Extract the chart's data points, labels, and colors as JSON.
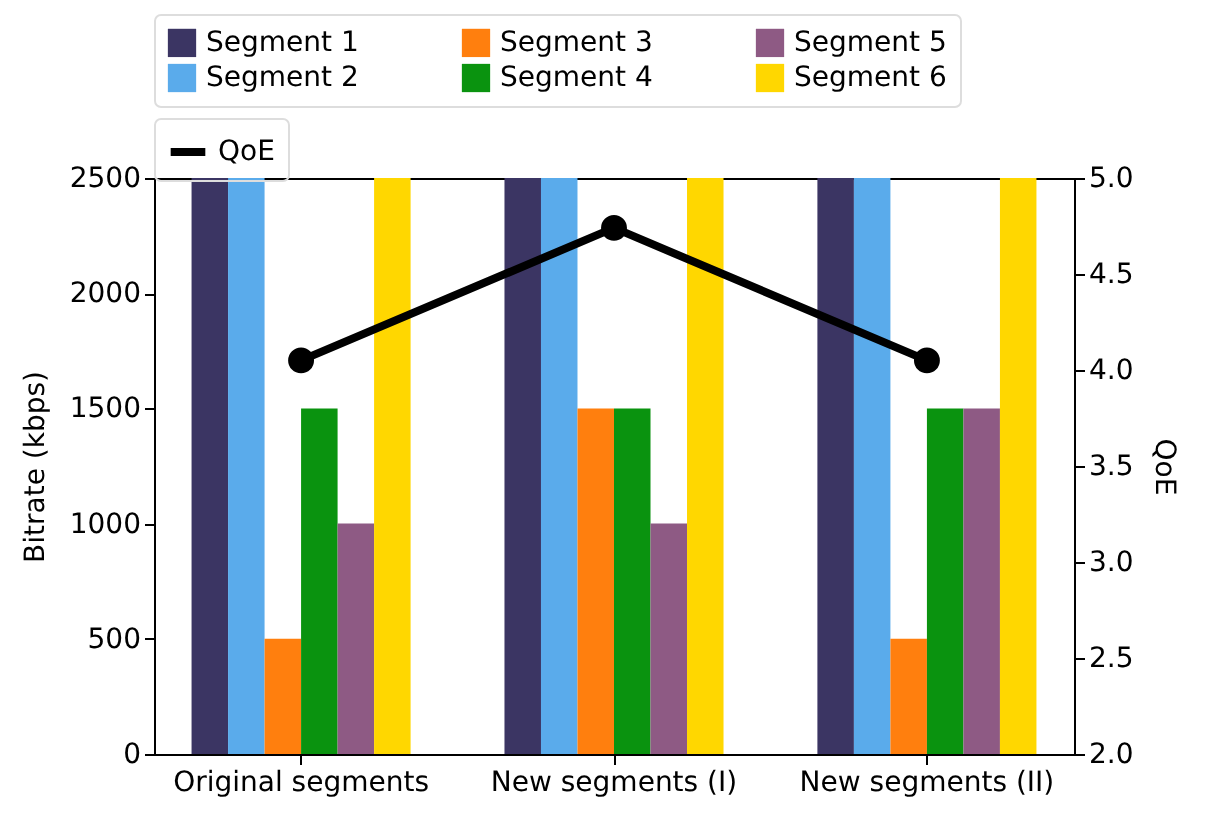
{
  "chart_data": {
    "type": "bar",
    "categories": [
      "Original segments",
      "New segments (I)",
      "New segments (II)"
    ],
    "series": [
      {
        "name": "Segment 1",
        "color": "#3b3563",
        "values": [
          2500,
          2500,
          2500
        ]
      },
      {
        "name": "Segment 2",
        "color": "#5aabeb",
        "values": [
          2500,
          2500,
          2500
        ]
      },
      {
        "name": "Segment 3",
        "color": "#ff7f0e",
        "values": [
          500,
          1500,
          500
        ]
      },
      {
        "name": "Segment 4",
        "color": "#0a930f",
        "values": [
          1500,
          1500,
          1500
        ]
      },
      {
        "name": "Segment 5",
        "color": "#8e5a84",
        "values": [
          1000,
          1000,
          1500
        ]
      },
      {
        "name": "Segment 6",
        "color": "#ffd700",
        "values": [
          2500,
          2500,
          2500
        ]
      },
      {
        "name": "QoE",
        "color": "#000000",
        "type": "line",
        "axis": "y2",
        "values": [
          4.05,
          4.74,
          4.05
        ]
      }
    ],
    "ylabel": "Bitrate (kbps)",
    "y2label": "QoE",
    "ylim": [
      0,
      2500
    ],
    "yticks": [
      0,
      500,
      1000,
      1500,
      2000,
      2500
    ],
    "y2lim": [
      2.0,
      5.0
    ],
    "y2ticks": [
      {
        "value": 2.0,
        "label": "2.0"
      },
      {
        "value": 2.5,
        "label": "2.5"
      },
      {
        "value": 3.0,
        "label": "3.0"
      },
      {
        "value": 3.5,
        "label": "3.5"
      },
      {
        "value": 4.0,
        "label": "4.0"
      },
      {
        "value": 4.5,
        "label": "4.5"
      },
      {
        "value": 5.0,
        "label": "5.0"
      }
    ],
    "legend": "top",
    "marker": "circle",
    "line_style": "solid",
    "grid": false
  }
}
